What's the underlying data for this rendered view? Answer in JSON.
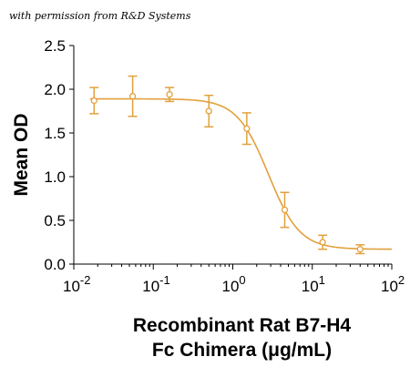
{
  "watermark": "with permission from R&D Systems",
  "chart_data": {
    "type": "scatter",
    "x_scale": "log",
    "xlim": [
      0.01,
      100
    ],
    "ylim": [
      0,
      2.5
    ],
    "xlabel_lines": [
      "Recombinant Rat B7-H4",
      "Fc Chimera (μg/mL)"
    ],
    "ylabel": "Mean OD",
    "x_ticks": [
      {
        "base": "10",
        "exp": "-2",
        "value": 0.01
      },
      {
        "base": "10",
        "exp": "-1",
        "value": 0.1
      },
      {
        "base": "10",
        "exp": "0",
        "value": 1
      },
      {
        "base": "10",
        "exp": "1",
        "value": 10
      },
      {
        "base": "10",
        "exp": "2",
        "value": 100
      }
    ],
    "y_ticks": [
      "0.0",
      "0.5",
      "1.0",
      "1.5",
      "2.0",
      "2.5"
    ],
    "points": [
      {
        "x": 0.018,
        "y": 1.87,
        "err": 0.15
      },
      {
        "x": 0.055,
        "y": 1.92,
        "err": 0.23
      },
      {
        "x": 0.16,
        "y": 1.94,
        "err": 0.08
      },
      {
        "x": 0.5,
        "y": 1.75,
        "err": 0.18
      },
      {
        "x": 1.5,
        "y": 1.55,
        "err": 0.18
      },
      {
        "x": 4.5,
        "y": 0.62,
        "err": 0.2
      },
      {
        "x": 13.5,
        "y": 0.25,
        "err": 0.08
      },
      {
        "x": 40,
        "y": 0.17,
        "err": 0.05
      }
    ],
    "fit": {
      "top": 1.89,
      "bottom": 0.17,
      "ec50": 2.8,
      "hill": 2.2
    },
    "color": "#E2A03C",
    "grid": false,
    "legend": "none"
  }
}
